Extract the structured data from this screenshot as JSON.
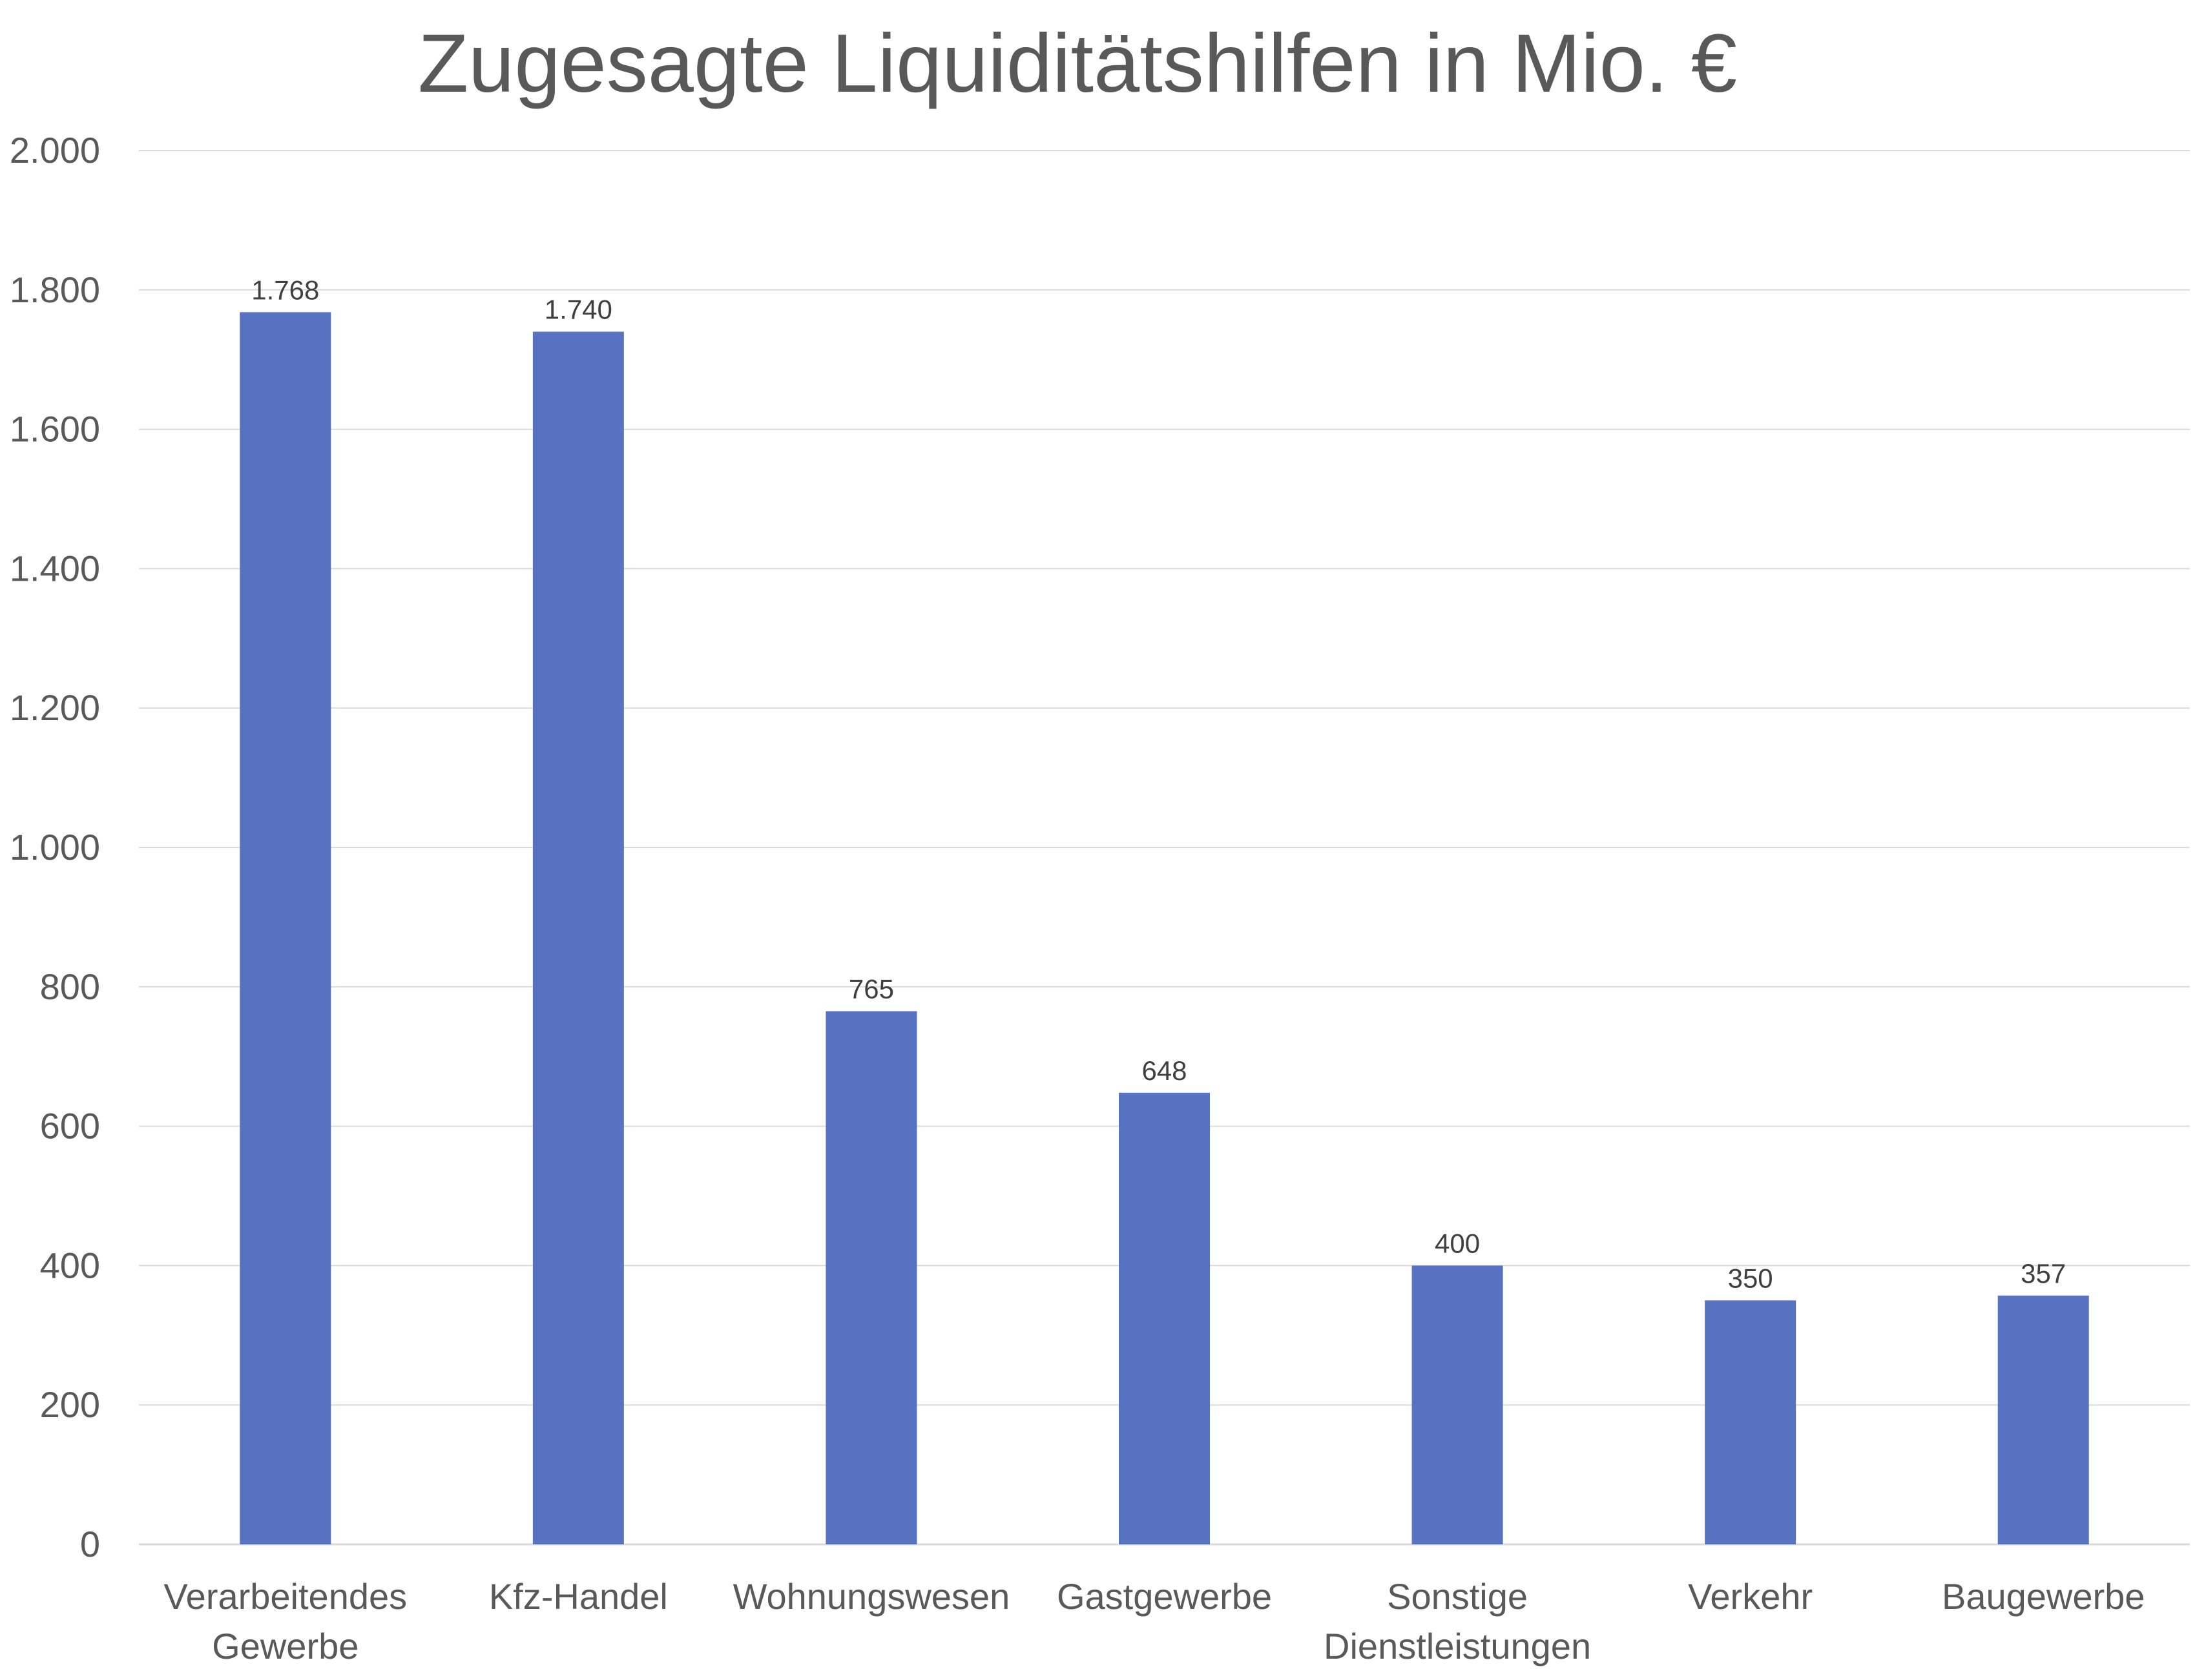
{
  "chart_data": {
    "type": "bar",
    "title": "Zugesagte Liquiditätshilfen in Mio. €",
    "xlabel": "",
    "ylabel": "",
    "categories": [
      [
        "Verarbeitendes",
        "Gewerbe"
      ],
      [
        "Kfz-Handel"
      ],
      [
        "Wohnungswesen"
      ],
      [
        "Gastgewerbe"
      ],
      [
        "Sonstige",
        "Dienstleistungen"
      ],
      [
        "Verkehr"
      ],
      [
        "Baugewerbe"
      ]
    ],
    "values": [
      1768,
      1740,
      765,
      648,
      400,
      350,
      357
    ],
    "data_labels": [
      "1.768",
      "1.740",
      "765",
      "648",
      "400",
      "350",
      "357"
    ],
    "ylim": [
      0,
      2000
    ],
    "y_ticks": [
      0,
      200,
      400,
      600,
      800,
      1000,
      1200,
      1400,
      1600,
      1800,
      2000
    ],
    "y_tick_labels": [
      "0",
      "200",
      "400",
      "600",
      "800",
      "1.000",
      "1.200",
      "1.400",
      "1.600",
      "1.800",
      "2.000"
    ],
    "grid": true,
    "legend": "none",
    "bar_color": "#5672c1"
  }
}
